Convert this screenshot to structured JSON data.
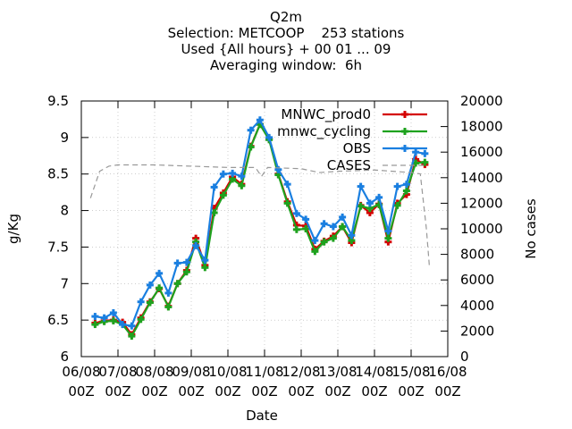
{
  "chart_data": {
    "type": "line",
    "title_lines": [
      "Q2m",
      "Selection: METCOOP    253 stations",
      "Used {All hours} + 00 01 ... 09",
      "Averaging window:  6h"
    ],
    "xlabel": "Date",
    "ylabel": "g/Kg",
    "y2label": "No cases",
    "x_range": [
      0,
      240
    ],
    "x_unit": "hours since 06/08 00Z",
    "x_ticks": [
      {
        "value": 0,
        "line1": "06/08",
        "line2": "00Z"
      },
      {
        "value": 24,
        "line1": "07/08",
        "line2": "00Z"
      },
      {
        "value": 48,
        "line1": "08/08",
        "line2": "00Z"
      },
      {
        "value": 72,
        "line1": "09/08",
        "line2": "00Z"
      },
      {
        "value": 96,
        "line1": "10/08",
        "line2": "00Z"
      },
      {
        "value": 120,
        "line1": "11/08",
        "line2": "00Z"
      },
      {
        "value": 144,
        "line1": "12/08",
        "line2": "00Z"
      },
      {
        "value": 168,
        "line1": "13/08",
        "line2": "00Z"
      },
      {
        "value": 192,
        "line1": "14/08",
        "line2": "00Z"
      },
      {
        "value": 216,
        "line1": "15/08",
        "line2": "00Z"
      },
      {
        "value": 240,
        "line1": "16/08",
        "line2": "00Z"
      }
    ],
    "ylim": [
      6,
      9.5
    ],
    "y_ticks": [
      "6",
      "6.5",
      "7",
      "7.5",
      "8",
      "8.5",
      "9",
      "9.5"
    ],
    "y2lim": [
      0,
      20000
    ],
    "y2_ticks": [
      "0",
      "2000",
      "4000",
      "6000",
      "8000",
      "10000",
      "12000",
      "14000",
      "16000",
      "18000",
      "20000"
    ],
    "legend_position": "top-right",
    "x": [
      9,
      15,
      21,
      27,
      33,
      39,
      45,
      51,
      57,
      63,
      69,
      75,
      81,
      87,
      93,
      99,
      105,
      111,
      117,
      123,
      129,
      135,
      141,
      147,
      153,
      159,
      165,
      171,
      177,
      183,
      189,
      195,
      201,
      207,
      213,
      219,
      225
    ],
    "series": [
      {
        "name": "MNWC_prod0",
        "color": "#d40000",
        "marker": "plus",
        "axis": "y1",
        "values": [
          6.46,
          6.49,
          6.5,
          6.47,
          6.3,
          6.53,
          6.75,
          6.93,
          6.69,
          7.0,
          7.18,
          7.62,
          7.25,
          8.03,
          8.24,
          8.46,
          8.36,
          8.88,
          9.18,
          8.98,
          8.5,
          8.12,
          7.8,
          7.79,
          7.47,
          7.58,
          7.65,
          7.78,
          7.56,
          8.07,
          7.97,
          8.09,
          7.57,
          8.1,
          8.22,
          8.7,
          8.63
        ]
      },
      {
        "name": "mnwc_cycling",
        "color": "#1ea21e",
        "marker": "plus",
        "axis": "y1",
        "values": [
          6.44,
          6.48,
          6.49,
          6.44,
          6.28,
          6.51,
          6.74,
          6.94,
          6.68,
          7.0,
          7.16,
          7.57,
          7.22,
          7.97,
          8.21,
          8.43,
          8.34,
          8.87,
          9.18,
          8.97,
          8.49,
          8.1,
          7.74,
          7.75,
          7.44,
          7.57,
          7.62,
          7.78,
          7.59,
          8.06,
          8.03,
          8.08,
          7.62,
          8.07,
          8.27,
          8.65,
          8.66
        ]
      },
      {
        "name": "OBS",
        "color": "#1a7fe0",
        "marker": "plus",
        "axis": "y1",
        "values": [
          6.55,
          6.53,
          6.6,
          6.44,
          6.42,
          6.75,
          6.98,
          7.14,
          6.87,
          7.28,
          7.29,
          7.52,
          7.32,
          8.32,
          8.5,
          8.51,
          8.47,
          9.1,
          9.24,
          9.0,
          8.56,
          8.36,
          7.96,
          7.88,
          7.59,
          7.82,
          7.78,
          7.91,
          7.66,
          8.33,
          8.1,
          8.18,
          7.72,
          8.33,
          8.36,
          8.8,
          8.78
        ]
      },
      {
        "name": "CASES",
        "color": "#999999",
        "marker": "none",
        "dash": "dashed",
        "axis": "y2",
        "points": [
          [
            6,
            12400
          ],
          [
            12,
            14500
          ],
          [
            18,
            14900
          ],
          [
            24,
            15000
          ],
          [
            48,
            15000
          ],
          [
            72,
            14900
          ],
          [
            96,
            14800
          ],
          [
            114,
            14800
          ],
          [
            118,
            14100
          ],
          [
            122,
            14800
          ],
          [
            144,
            14700
          ],
          [
            156,
            14400
          ],
          [
            168,
            14500
          ],
          [
            192,
            14600
          ],
          [
            216,
            14400
          ],
          [
            222,
            14300
          ],
          [
            226,
            10000
          ],
          [
            228,
            7000
          ]
        ]
      }
    ]
  }
}
